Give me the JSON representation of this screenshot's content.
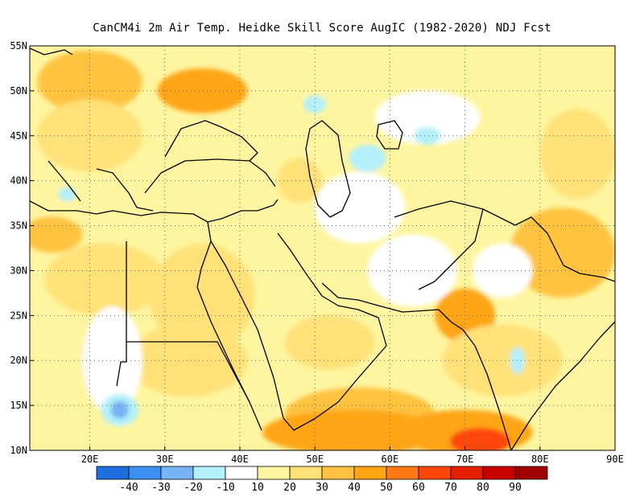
{
  "title": "CanCM4i  2m Air Temp. Heidke Skill Score AugIC (1982-2020) NDJ Fcst",
  "map": {
    "lon_range": [
      12,
      90
    ],
    "lat_range": [
      10,
      55
    ],
    "x_ticks": [
      {
        "value": 20,
        "label": "20E"
      },
      {
        "value": 30,
        "label": "30E"
      },
      {
        "value": 40,
        "label": "40E"
      },
      {
        "value": 50,
        "label": "50E"
      },
      {
        "value": 60,
        "label": "60E"
      },
      {
        "value": 70,
        "label": "70E"
      },
      {
        "value": 80,
        "label": "80E"
      },
      {
        "value": 90,
        "label": "90E"
      }
    ],
    "y_ticks": [
      {
        "value": 10,
        "label": "10N"
      },
      {
        "value": 15,
        "label": "15N"
      },
      {
        "value": 20,
        "label": "20N"
      },
      {
        "value": 25,
        "label": "25N"
      },
      {
        "value": 30,
        "label": "30N"
      },
      {
        "value": 35,
        "label": "35N"
      },
      {
        "value": 40,
        "label": "40N"
      },
      {
        "value": 45,
        "label": "45N"
      },
      {
        "value": 50,
        "label": "50N"
      },
      {
        "value": 55,
        "label": "55N"
      }
    ],
    "grid": "dotted"
  },
  "colorbar": {
    "bins": [
      {
        "color": "#1e6ee0"
      },
      {
        "color": "#3c8ff0"
      },
      {
        "color": "#78b4f5"
      },
      {
        "color": "#b4f0fa"
      },
      {
        "color": "#ffffff"
      },
      {
        "color": "#fff5a0"
      },
      {
        "color": "#ffe178"
      },
      {
        "color": "#ffc341"
      },
      {
        "color": "#ffa514"
      },
      {
        "color": "#ff7814"
      },
      {
        "color": "#ff460a"
      },
      {
        "color": "#e61e00"
      },
      {
        "color": "#c80000"
      },
      {
        "color": "#a00000"
      }
    ],
    "labels": [
      "-40",
      "-30",
      "-20",
      "-10",
      "10",
      "20",
      "30",
      "40",
      "50",
      "60",
      "70",
      "80",
      "90"
    ]
  },
  "chart_data": {
    "type": "heatmap",
    "title": "CanCM4i  2m Air Temp. Heidke Skill Score AugIC (1982-2020) NDJ Fcst",
    "xlabel": "",
    "ylabel": "",
    "xlim": [
      12,
      90
    ],
    "ylim": [
      10,
      55
    ],
    "levels": [
      -40,
      -30,
      -20,
      -10,
      10,
      20,
      30,
      40,
      50,
      60,
      70,
      80,
      90
    ],
    "regions": [
      {
        "lon": 20,
        "lat": 51,
        "rx": 7,
        "ry": 3.5,
        "value": 35
      },
      {
        "lon": 35,
        "lat": 50,
        "rx": 6,
        "ry": 2.5,
        "value": 40
      },
      {
        "lon": 32,
        "lat": 50,
        "rx": 3,
        "ry": 1.5,
        "value": 45
      },
      {
        "lon": 20,
        "lat": 45,
        "rx": 7,
        "ry": 4,
        "value": 20
      },
      {
        "lon": 15,
        "lat": 34,
        "rx": 4,
        "ry": 2,
        "value": 30
      },
      {
        "lon": 22,
        "lat": 29,
        "rx": 8,
        "ry": 4,
        "value": 20
      },
      {
        "lon": 35,
        "lat": 27,
        "rx": 7,
        "ry": 6,
        "value": 20
      },
      {
        "lon": 33,
        "lat": 20,
        "rx": 8,
        "ry": 4,
        "value": 20
      },
      {
        "lon": 52,
        "lat": 22,
        "rx": 6,
        "ry": 3,
        "value": 25
      },
      {
        "lon": 48,
        "lat": 40,
        "rx": 3,
        "ry": 2.5,
        "value": 25
      },
      {
        "lon": 58,
        "lat": 52,
        "rx": 10,
        "ry": 3,
        "value": 15
      },
      {
        "lon": 83,
        "lat": 32,
        "rx": 7,
        "ry": 5,
        "value": 35
      },
      {
        "lon": 85,
        "lat": 43,
        "rx": 5,
        "ry": 5,
        "value": 25
      },
      {
        "lon": 70,
        "lat": 25,
        "rx": 4,
        "ry": 3,
        "value": 40
      },
      {
        "lon": 75,
        "lat": 20,
        "rx": 8,
        "ry": 4,
        "value": 20
      },
      {
        "lon": 56,
        "lat": 14,
        "rx": 10,
        "ry": 3,
        "value": 30
      },
      {
        "lon": 55,
        "lat": 12,
        "rx": 12,
        "ry": 2.5,
        "value": 40
      },
      {
        "lon": 70,
        "lat": 12,
        "rx": 9,
        "ry": 2.5,
        "value": 45
      },
      {
        "lon": 72,
        "lat": 11,
        "rx": 4,
        "ry": 1.5,
        "value": 60
      },
      {
        "lon": 56,
        "lat": 37,
        "rx": 6,
        "ry": 4,
        "value": 5
      },
      {
        "lon": 63,
        "lat": 30,
        "rx": 6,
        "ry": 4,
        "value": 5
      },
      {
        "lon": 75,
        "lat": 30,
        "rx": 4,
        "ry": 3,
        "value": 5
      },
      {
        "lon": 23,
        "lat": 20,
        "rx": 4,
        "ry": 6,
        "value": 5
      },
      {
        "lon": 65,
        "lat": 47,
        "rx": 7,
        "ry": 3,
        "value": 5
      },
      {
        "lon": 57,
        "lat": 42.5,
        "rx": 2.5,
        "ry": 1.5,
        "value": -15
      },
      {
        "lon": 65,
        "lat": 45,
        "rx": 1.8,
        "ry": 1.0,
        "value": -15
      },
      {
        "lon": 50,
        "lat": 48.5,
        "rx": 1.5,
        "ry": 1.0,
        "value": -15
      },
      {
        "lon": 77,
        "lat": 20,
        "rx": 1.0,
        "ry": 1.5,
        "value": -15
      },
      {
        "lon": 24,
        "lat": 14.5,
        "rx": 2.5,
        "ry": 1.8,
        "value": -15
      },
      {
        "lon": 24,
        "lat": 14.5,
        "rx": 1.2,
        "ry": 1.0,
        "value": -25
      },
      {
        "lon": 17,
        "lat": 38.5,
        "rx": 1.2,
        "ry": 0.8,
        "value": -15
      }
    ]
  }
}
